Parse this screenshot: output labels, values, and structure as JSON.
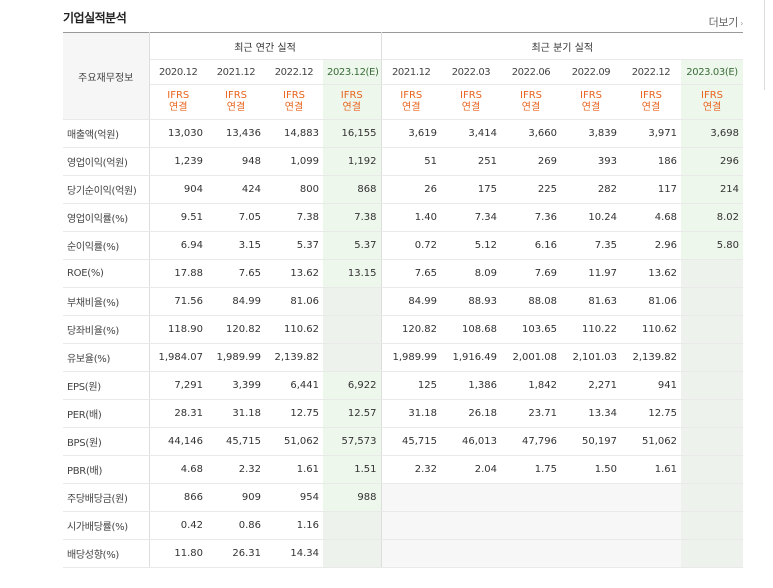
{
  "section": {
    "title": "기업실적분석",
    "more_label": "더보기",
    "more_arrow": "›"
  },
  "table": {
    "row_header": "주요재무정보",
    "annual_group": "최근 연간 실적",
    "quarter_group": "최근 분기 실적",
    "annual_periods": [
      {
        "label": "2020.12",
        "est": false
      },
      {
        "label": "2021.12",
        "est": false
      },
      {
        "label": "2022.12",
        "est": false
      },
      {
        "label": "2023.12(E)",
        "est": true
      }
    ],
    "quarter_periods": [
      {
        "label": "2021.12",
        "est": false
      },
      {
        "label": "2022.03",
        "est": false
      },
      {
        "label": "2022.06",
        "est": false
      },
      {
        "label": "2022.09",
        "est": false
      },
      {
        "label": "2022.12",
        "est": false
      },
      {
        "label": "2023.03(E)",
        "est": true
      }
    ],
    "ifrs_line1": "IFRS",
    "ifrs_line2": "연결",
    "rows": [
      {
        "label": "매출액(억원)",
        "values": [
          "13,030",
          "13,436",
          "14,883",
          "16,155",
          "3,619",
          "3,414",
          "3,660",
          "3,839",
          "3,971",
          "3,698"
        ]
      },
      {
        "label": "영업이익(억원)",
        "values": [
          "1,239",
          "948",
          "1,099",
          "1,192",
          "51",
          "251",
          "269",
          "393",
          "186",
          "296"
        ]
      },
      {
        "label": "당기순이익(억원)",
        "values": [
          "904",
          "424",
          "800",
          "868",
          "26",
          "175",
          "225",
          "282",
          "117",
          "214"
        ]
      },
      {
        "label": "영업이익률(%)",
        "values": [
          "9.51",
          "7.05",
          "7.38",
          "7.38",
          "1.40",
          "7.34",
          "7.36",
          "10.24",
          "4.68",
          "8.02"
        ],
        "group_start": true
      },
      {
        "label": "순이익률(%)",
        "values": [
          "6.94",
          "3.15",
          "5.37",
          "5.37",
          "0.72",
          "5.12",
          "6.16",
          "7.35",
          "2.96",
          "5.80"
        ]
      },
      {
        "label": "ROE(%)",
        "values": [
          "17.88",
          "7.65",
          "13.62",
          "13.15",
          "7.65",
          "8.09",
          "7.69",
          "11.97",
          "13.62",
          ""
        ]
      },
      {
        "label": "부채비율(%)",
        "values": [
          "71.56",
          "84.99",
          "81.06",
          "",
          "84.99",
          "88.93",
          "88.08",
          "81.63",
          "81.06",
          ""
        ],
        "group_start": true
      },
      {
        "label": "당좌비율(%)",
        "values": [
          "118.90",
          "120.82",
          "110.62",
          "",
          "120.82",
          "108.68",
          "103.65",
          "110.22",
          "110.62",
          ""
        ]
      },
      {
        "label": "유보율(%)",
        "values": [
          "1,984.07",
          "1,989.99",
          "2,139.82",
          "",
          "1,989.99",
          "1,916.49",
          "2,001.08",
          "2,101.03",
          "2,139.82",
          ""
        ]
      },
      {
        "label": "EPS(원)",
        "values": [
          "7,291",
          "3,399",
          "6,441",
          "6,922",
          "125",
          "1,386",
          "1,842",
          "2,271",
          "941",
          ""
        ],
        "group_start": true
      },
      {
        "label": "PER(배)",
        "values": [
          "28.31",
          "31.18",
          "12.75",
          "12.57",
          "31.18",
          "26.18",
          "23.71",
          "13.34",
          "12.75",
          ""
        ]
      },
      {
        "label": "BPS(원)",
        "values": [
          "44,146",
          "45,715",
          "51,062",
          "57,573",
          "45,715",
          "46,013",
          "47,796",
          "50,197",
          "51,062",
          ""
        ]
      },
      {
        "label": "PBR(배)",
        "values": [
          "4.68",
          "2.32",
          "1.61",
          "1.51",
          "2.32",
          "2.04",
          "1.75",
          "1.50",
          "1.61",
          ""
        ]
      },
      {
        "label": "주당배당금(원)",
        "values": [
          "866",
          "909",
          "954",
          "988",
          "",
          "",
          "",
          "",
          "",
          ""
        ],
        "group_start": true
      },
      {
        "label": "시가배당률(%)",
        "values": [
          "0.42",
          "0.86",
          "1.16",
          "",
          "",
          "",
          "",
          "",
          "",
          ""
        ]
      },
      {
        "label": "배당성향(%)",
        "values": [
          "11.80",
          "26.31",
          "14.34",
          "",
          "",
          "",
          "",
          "",
          "",
          ""
        ]
      }
    ]
  }
}
